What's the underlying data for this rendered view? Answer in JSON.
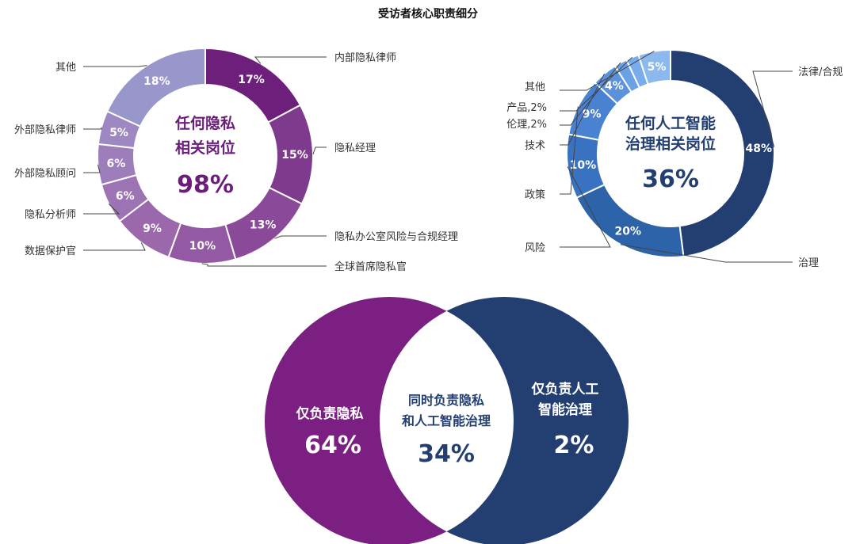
{
  "title": "受访者核心职责细分",
  "colors": {
    "purple_dark": "#6b1d7a",
    "blue_dark": "#223f73",
    "leader": "#444444",
    "label": "#333333"
  },
  "chart_data": [
    {
      "type": "donut",
      "center_label": [
        "任何隐私",
        "相关岗位"
      ],
      "center_value": "98%",
      "segments": [
        {
          "name": "内部隐私律师",
          "value": 17,
          "label": "17%",
          "color": "#6e1f7c"
        },
        {
          "name": "隐私经理",
          "value": 15,
          "label": "15%",
          "color": "#7e3a8d"
        },
        {
          "name": "隐私办公室风险与合规经理",
          "value": 13,
          "label": "13%",
          "color": "#8a4a99"
        },
        {
          "name": "全球首席隐私官",
          "value": 10,
          "label": "10%",
          "color": "#935aa3"
        },
        {
          "name": "数据保护官",
          "value": 9,
          "label": "9%",
          "color": "#9b68ab"
        },
        {
          "name": "隐私分析师",
          "value": 6,
          "label": "6%",
          "color": "#9c74b3"
        },
        {
          "name": "外部隐私顾问",
          "value": 6,
          "label": "6%",
          "color": "#9d7eba"
        },
        {
          "name": "外部隐私律师",
          "value": 5,
          "label": "5%",
          "color": "#9d88c2"
        },
        {
          "name": "其他",
          "value": 18,
          "label": "18%",
          "color": "#9996cc"
        }
      ]
    },
    {
      "type": "donut",
      "center_label": [
        "任何人工智能",
        "治理相关岗位"
      ],
      "center_value": "36%",
      "segments": [
        {
          "name": "法律/合规",
          "value": 48,
          "label": "48%",
          "color": "#233f72"
        },
        {
          "name": "治理",
          "value": 20,
          "label": "20%",
          "color": "#2d63a8"
        },
        {
          "name": "风险",
          "value": 10,
          "label": "10%",
          "color": "#3a72c2"
        },
        {
          "name": "政策",
          "value": 9,
          "label": "9%",
          "color": "#4a82d2"
        },
        {
          "name": "技术",
          "value": 4,
          "label": "4%",
          "color": "#5c92dc"
        },
        {
          "name": "伦理,2%",
          "value": 2,
          "label": "",
          "color": "#6aa0e4"
        },
        {
          "name": "产品,2%",
          "value": 2,
          "label": "",
          "color": "#78aceb"
        },
        {
          "name": "其他",
          "value": 5,
          "label": "5%",
          "color": "#8ab8ef"
        }
      ]
    },
    {
      "type": "venn",
      "left": {
        "label": [
          "仅负责隐私"
        ],
        "value": "64%",
        "color": "#7b1f82"
      },
      "overlap": {
        "label": [
          "同时负责隐私",
          "和人工智能治理"
        ],
        "value": "34%",
        "color": "#ffffff"
      },
      "right": {
        "label": [
          "仅负责人工",
          "智能治理"
        ],
        "value": "2%",
        "color": "#233f72"
      }
    }
  ]
}
